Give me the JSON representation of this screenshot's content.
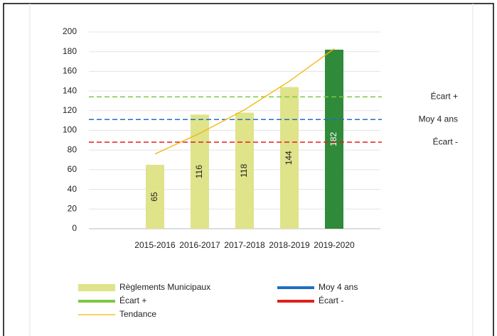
{
  "chart_data": {
    "type": "bar",
    "categories": [
      "2015-2016",
      "2016-2017",
      "2017-2018",
      "2018-2019",
      "2019-2020"
    ],
    "series": [
      {
        "name": "Règlements Municipaux",
        "type": "bar",
        "values": [
          65,
          116,
          118,
          144,
          182
        ],
        "colors": [
          "#dfe38a",
          "#dfe38a",
          "#dfe38a",
          "#dfe38a",
          "#2f8a3a"
        ]
      },
      {
        "name": "Moy 4 ans",
        "type": "hline",
        "value": 111,
        "color": "#1f6fc0"
      },
      {
        "name": "Écart +",
        "type": "hline",
        "value": 134,
        "color": "#7cc843"
      },
      {
        "name": "Écart -",
        "type": "hline",
        "value": 88,
        "color": "#e0201a"
      },
      {
        "name": "Tendance",
        "type": "trend",
        "values": [
          76,
          97,
          121,
          150,
          183
        ],
        "color": "#f5b400"
      }
    ],
    "ylim": [
      0,
      200
    ],
    "yticks": [
      0,
      20,
      40,
      60,
      80,
      100,
      120,
      140,
      160,
      180,
      200
    ],
    "grid": true,
    "legend": "bottom"
  }
}
